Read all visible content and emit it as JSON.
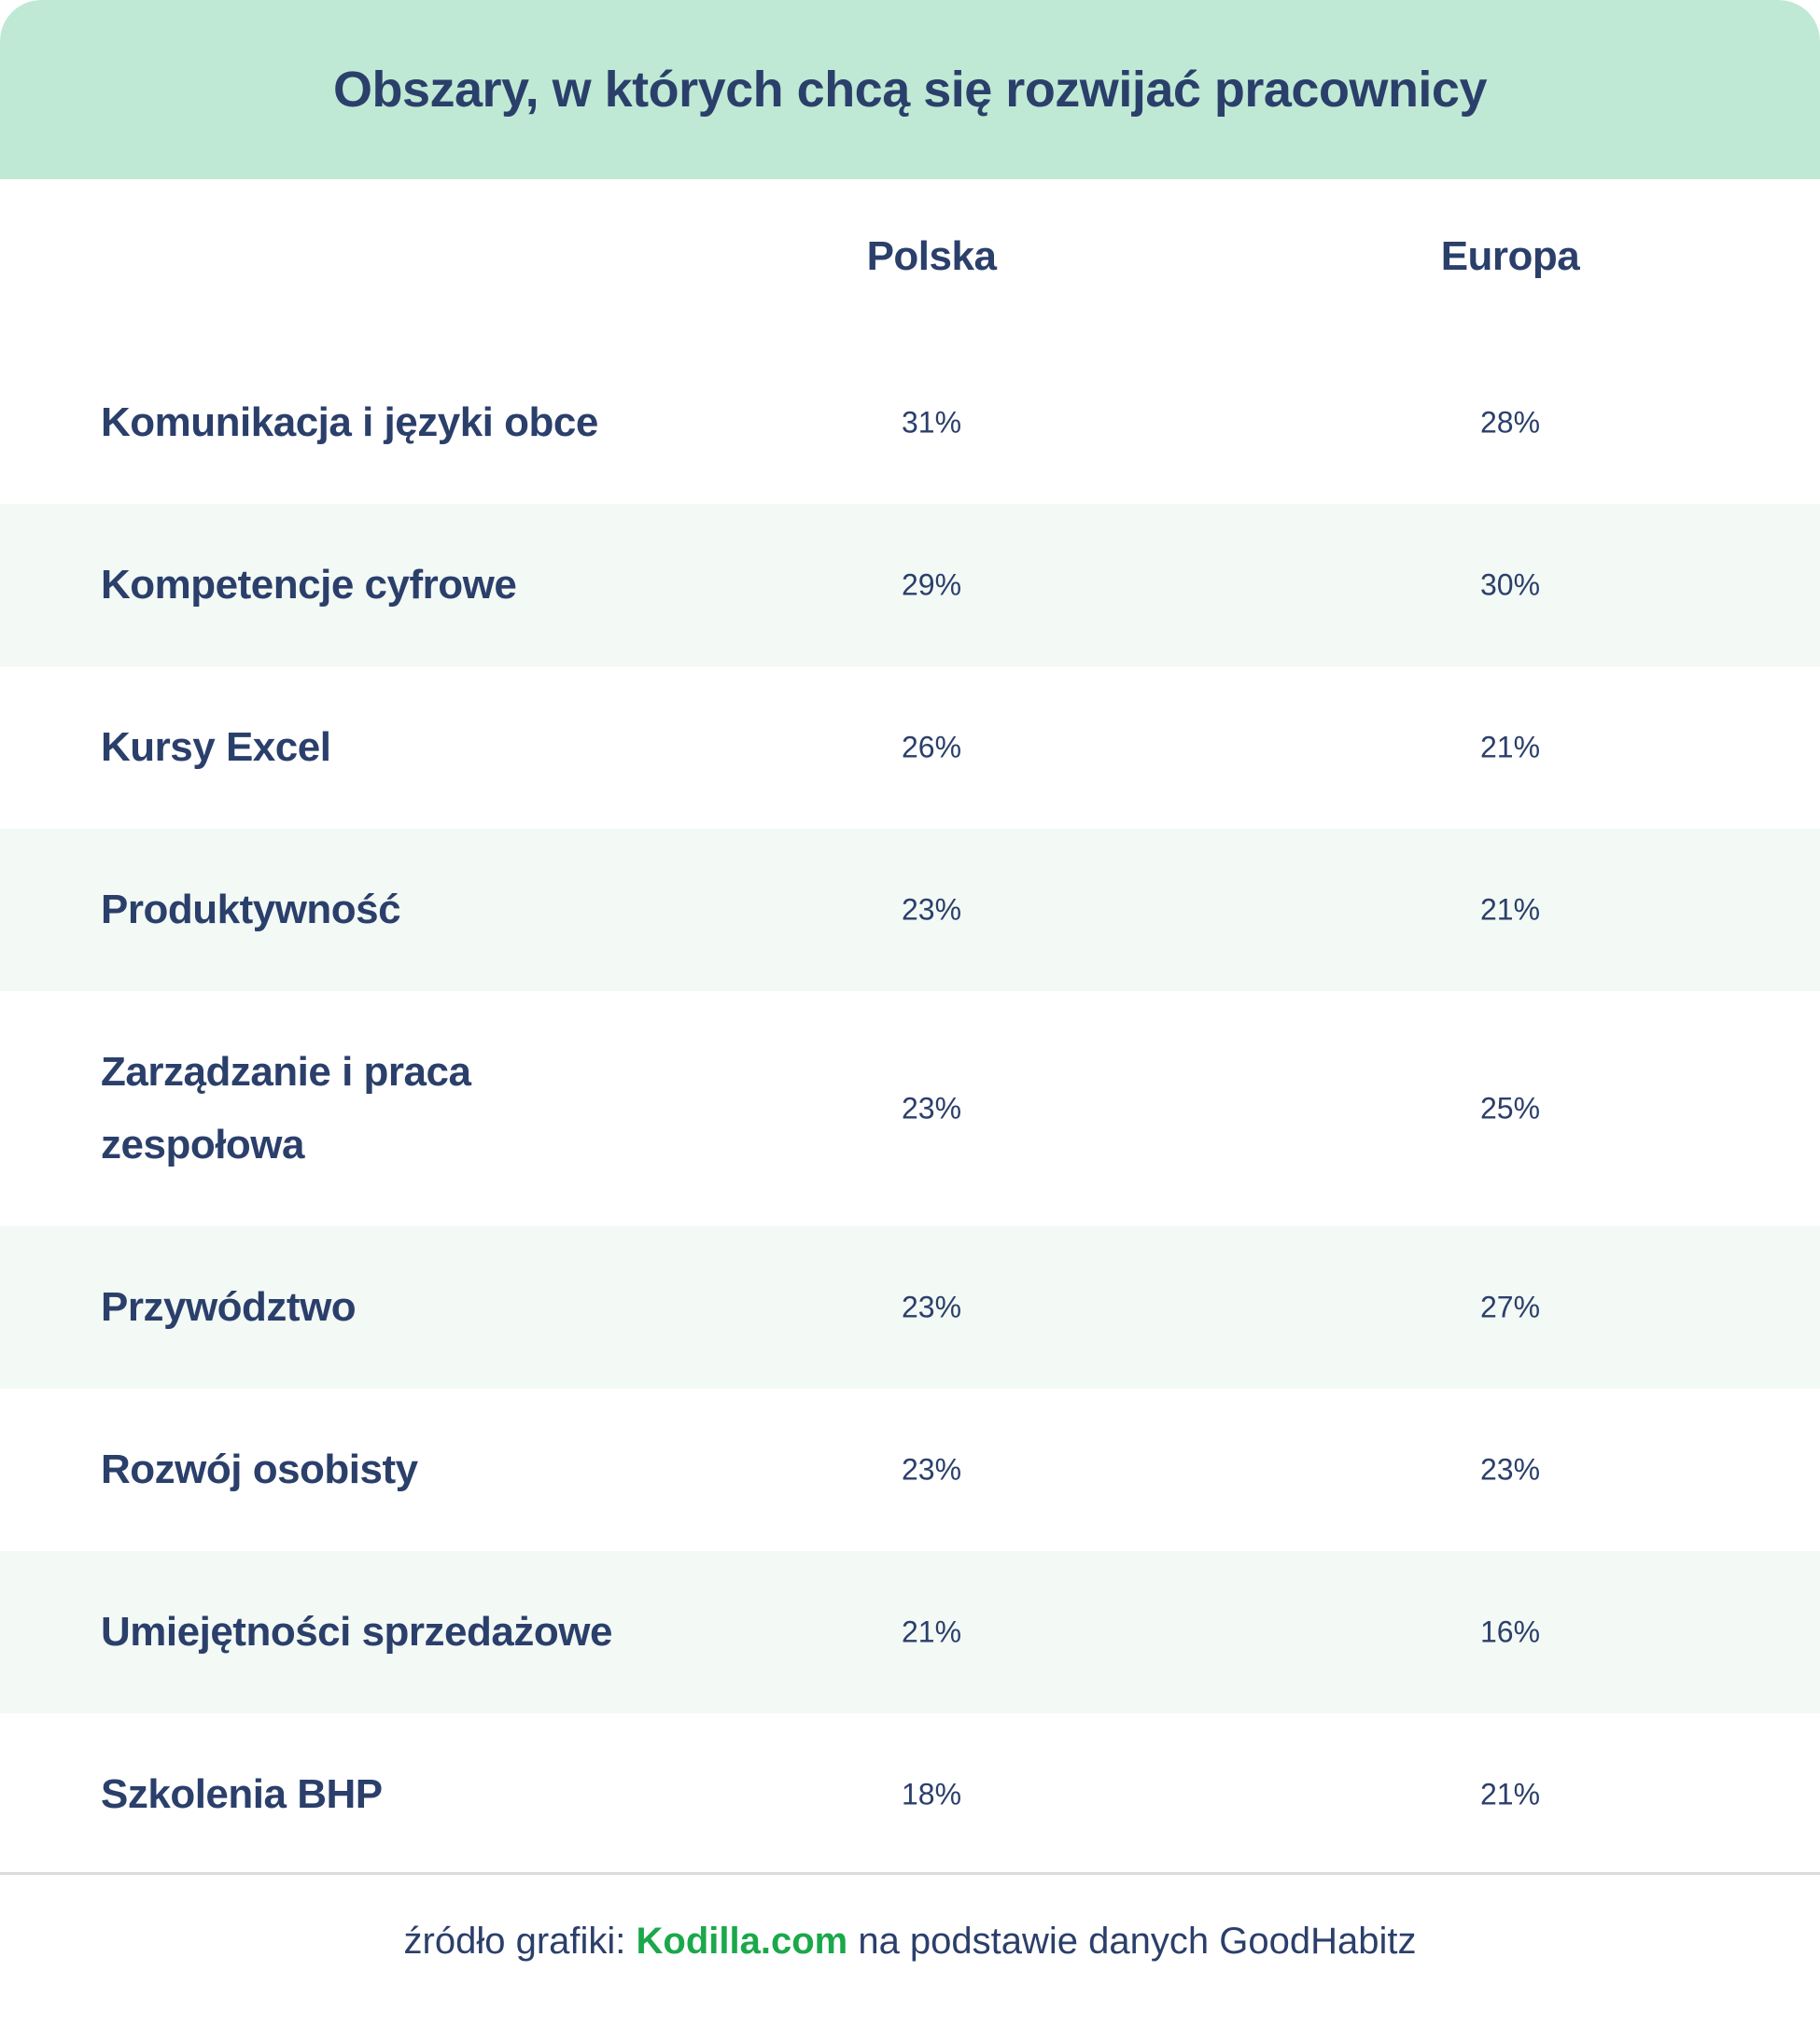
{
  "chart_data": {
    "type": "table",
    "title": "Obszary, w których chcą się rozwijać pracownicy",
    "columns": [
      "Polska",
      "Europa"
    ],
    "unit": "%",
    "rows": [
      {
        "category": "Komunikacja i języki obce",
        "polska": "31%",
        "europa": "28%"
      },
      {
        "category": "Kompetencje cyfrowe",
        "polska": "29%",
        "europa": "30%"
      },
      {
        "category": "Kursy Excel",
        "polska": "26%",
        "europa": "21%"
      },
      {
        "category": "Produktywność",
        "polska": "23%",
        "europa": "21%"
      },
      {
        "category": "Zarządzanie i praca zespołowa",
        "polska": "23%",
        "europa": "25%"
      },
      {
        "category": "Przywództwo",
        "polska": "23%",
        "europa": "27%"
      },
      {
        "category": "Rozwój osobisty",
        "polska": "23%",
        "europa": "23%"
      },
      {
        "category": "Umiejętności sprzedażowe",
        "polska": "21%",
        "europa": "16%"
      },
      {
        "category": "Szkolenia BHP",
        "polska": "18%",
        "europa": "21%"
      }
    ]
  },
  "footer": {
    "prefix": "źródło grafiki: ",
    "brand": "Kodilla.com",
    "suffix": " na podstawie danych GoodHabitz"
  },
  "colors": {
    "header_bg": "#bfe9d4",
    "text": "#2b3f6b",
    "alt_row_bg": "#f3f9f5",
    "brand_green": "#1aa84a"
  }
}
